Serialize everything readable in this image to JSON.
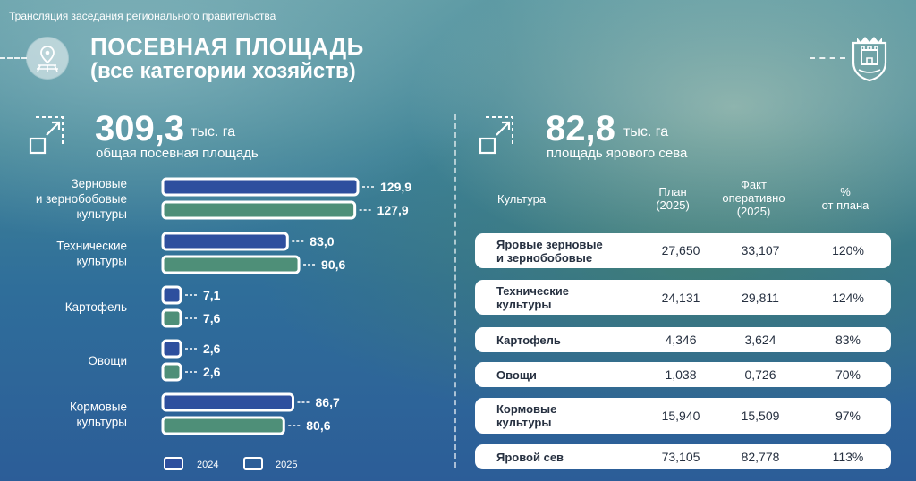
{
  "broadcast_title": "Трансляция заседания регионального правительства",
  "header": {
    "title_line1": "ПОСЕВНАЯ ПЛОЩАДЬ",
    "title_line2": "(все категории хозяйств)",
    "icon": "field-location-icon",
    "emblem": "coat-of-arms-icon"
  },
  "left_stat": {
    "value": "309,3",
    "unit": "тыс. га",
    "label": "общая посевная площадь",
    "icon": "expand-area-icon"
  },
  "right_stat": {
    "value": "82,8",
    "unit": "тыс. га",
    "label": "площадь ярового сева",
    "icon": "expand-area-icon"
  },
  "legend": [
    {
      "label": "2024"
    },
    {
      "label": "2025"
    }
  ],
  "colors": {
    "series_2024": "#2e4f9e",
    "series_2025": "#4e8f78",
    "bar_border": "#ffffff",
    "row_text": "#263040"
  },
  "chart_data": {
    "type": "bar",
    "orientation": "horizontal",
    "categories": [
      "Зерновые\nи зернобобовые\nкультуры",
      "Технические\nкультуры",
      "Картофель",
      "Овощи",
      "Кормовые\nкультуры"
    ],
    "series": [
      {
        "name": "2024",
        "values": [
          129.9,
          83.0,
          7.1,
          2.6,
          86.7
        ],
        "labels": [
          "129,9",
          "83,0",
          "7,1",
          "2,6",
          "86,7"
        ]
      },
      {
        "name": "2025",
        "values": [
          127.9,
          90.6,
          7.6,
          2.6,
          80.6
        ],
        "labels": [
          "127,9",
          "90,6",
          "7,6",
          "2,6",
          "80,6"
        ]
      }
    ],
    "legend_position": "bottom",
    "grid": false
  },
  "table": {
    "headers": [
      "Культура",
      "План\n(2025)",
      "Факт\nоперативно\n(2025)",
      "%\nот плана"
    ],
    "rows": [
      {
        "name": "Яровые зерновые\nи зернобобовые",
        "plan": "27,650",
        "fact": "33,107",
        "pct": "120%"
      },
      {
        "name": "Технические\nкультуры",
        "plan": "24,131",
        "fact": "29,811",
        "pct": "124%"
      },
      {
        "name": "Картофель",
        "plan": "4,346",
        "fact": "3,624",
        "pct": "83%"
      },
      {
        "name": "Овощи",
        "plan": "1,038",
        "fact": "0,726",
        "pct": "70%"
      },
      {
        "name": "Кормовые\nкультуры",
        "plan": "15,940",
        "fact": "15,509",
        "pct": "97%"
      },
      {
        "name": "Яровой сев",
        "plan": "73,105",
        "fact": "82,778",
        "pct": "113%"
      }
    ]
  }
}
